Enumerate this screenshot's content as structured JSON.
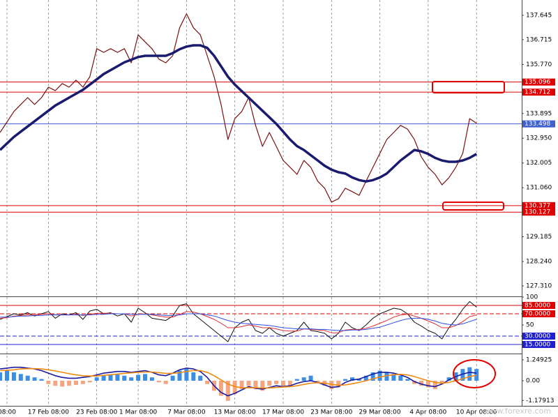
{
  "chart_data": [
    {
      "type": "line",
      "ylim": [
        126.91,
        138.23
      ],
      "yticks": [
        137.645,
        136.715,
        {
          "value": 135.77,
          "label": "135.770"
        },
        133.895,
        {
          "value": 132.95,
          "label": "132.950"
        },
        132.005,
        {
          "value": 131.06,
          "label": "131.060"
        },
        129.185,
        {
          "value": 128.24,
          "label": "128.240"
        },
        {
          "value": 127.31,
          "label": "127.310"
        }
      ],
      "levels": [
        {
          "value": 135.096,
          "color": "#e00000"
        },
        {
          "value": 134.712,
          "color": "#e00000"
        },
        {
          "value": 133.498,
          "color": "#4060d0"
        },
        {
          "value": 130.377,
          "color": "#e00000"
        },
        {
          "value": 130.127,
          "color": "#e00000"
        }
      ],
      "series": [
        {
          "color": "#7a1010",
          "values": [
            133.17,
            133.57,
            133.97,
            134.24,
            134.5,
            134.24,
            134.5,
            134.9,
            134.77,
            135.04,
            134.9,
            135.17,
            134.9,
            135.3,
            136.37,
            136.23,
            136.37,
            136.23,
            136.37,
            135.83,
            136.9,
            136.63,
            136.37,
            135.97,
            135.83,
            136.1,
            137.17,
            137.7,
            137.17,
            136.9,
            136.1,
            135.3,
            134.24,
            132.9,
            133.7,
            133.97,
            134.5,
            133.44,
            132.64,
            133.17,
            132.64,
            132.1,
            131.84,
            131.57,
            132.1,
            131.84,
            131.31,
            131.04,
            130.51,
            130.64,
            131.04,
            130.91,
            130.77,
            131.31,
            131.84,
            132.37,
            132.9,
            133.17,
            133.44,
            133.3,
            132.9,
            132.24,
            131.84,
            131.57,
            131.17,
            131.44,
            131.84,
            132.37,
            133.7,
            133.52
          ]
        },
        {
          "color": "#1a1a6e",
          "values": [
            132.5,
            132.75,
            133.0,
            133.2,
            133.4,
            133.6,
            133.8,
            134.0,
            134.2,
            134.35,
            134.5,
            134.65,
            134.8,
            135.0,
            135.2,
            135.4,
            135.55,
            135.7,
            135.85,
            135.95,
            136.05,
            136.1,
            136.1,
            136.1,
            136.1,
            136.2,
            136.35,
            136.45,
            136.5,
            136.5,
            136.4,
            136.1,
            135.7,
            135.3,
            135.0,
            134.75,
            134.5,
            134.25,
            134.0,
            133.75,
            133.5,
            133.2,
            132.9,
            132.65,
            132.5,
            132.3,
            132.1,
            131.9,
            131.75,
            131.65,
            131.6,
            131.45,
            131.35,
            131.3,
            131.35,
            131.45,
            131.6,
            131.85,
            132.1,
            132.3,
            132.5,
            132.45,
            132.35,
            132.2,
            132.1,
            132.05,
            132.05,
            132.1,
            132.2,
            132.35
          ]
        }
      ]
    },
    {
      "type": "line",
      "ylim": [
        0,
        100
      ],
      "yticks": [
        100,
        50
      ],
      "levels": [
        {
          "value": 85,
          "label": "85.0000",
          "color": "#e00000",
          "style": "solid"
        },
        {
          "value": 70,
          "label": "70.0000",
          "color": "#e00000",
          "style": "dashed"
        },
        {
          "value": 30,
          "label": "30.0000",
          "color": "#2020d0",
          "style": "dashed"
        },
        {
          "value": 15,
          "label": "15.0000",
          "color": "#2020d0",
          "style": "solid"
        }
      ],
      "series": [
        {
          "color": "#111111",
          "values": [
            60,
            65,
            70,
            68,
            72,
            66,
            70,
            74,
            62,
            70,
            68,
            72,
            60,
            75,
            78,
            70,
            72,
            66,
            70,
            55,
            80,
            72,
            62,
            60,
            58,
            66,
            85,
            88,
            70,
            60,
            50,
            40,
            30,
            20,
            45,
            55,
            60,
            40,
            35,
            45,
            35,
            30,
            35,
            40,
            55,
            40,
            38,
            35,
            25,
            35,
            55,
            45,
            40,
            50,
            62,
            70,
            75,
            80,
            78,
            70,
            55,
            48,
            40,
            35,
            25,
            45,
            60,
            78,
            92,
            82
          ]
        },
        {
          "color": "#e03030",
          "values": [
            62,
            63,
            66,
            67,
            68,
            68,
            69,
            70,
            68,
            68,
            68,
            69,
            67,
            69,
            71,
            71,
            71,
            70,
            70,
            66,
            69,
            70,
            68,
            66,
            64,
            64,
            69,
            74,
            73,
            70,
            65,
            60,
            53,
            45,
            45,
            47,
            50,
            48,
            45,
            45,
            43,
            40,
            39,
            39,
            43,
            42,
            41,
            40,
            36,
            36,
            41,
            42,
            42,
            44,
            48,
            53,
            58,
            64,
            68,
            69,
            66,
            62,
            57,
            52,
            45,
            45,
            49,
            56,
            65,
            68
          ]
        },
        {
          "color": "#3050e0",
          "values": [
            64,
            64,
            65,
            66,
            66,
            67,
            67,
            68,
            68,
            68,
            68,
            68,
            68,
            68,
            69,
            69,
            70,
            70,
            70,
            69,
            69,
            69,
            69,
            68,
            67,
            67,
            68,
            70,
            70,
            70,
            68,
            66,
            62,
            58,
            55,
            53,
            52,
            51,
            50,
            49,
            47,
            45,
            44,
            43,
            43,
            43,
            42,
            42,
            41,
            40,
            40,
            41,
            41,
            42,
            44,
            46,
            50,
            54,
            58,
            61,
            62,
            62,
            60,
            57,
            53,
            51,
            50,
            52,
            56,
            60
          ]
        }
      ]
    },
    {
      "type": "macd",
      "ylim": [
        -1.5,
        1.58
      ],
      "yticks": [
        1.24925,
        {
          "value": 0,
          "label": "0.00"
        },
        -1.17913
      ],
      "categories": [
        null,
        "08:00",
        null,
        null,
        null,
        null,
        null,
        "17 Feb 08:00",
        null,
        null,
        null,
        null,
        null,
        null,
        "23 Feb 08:00",
        null,
        null,
        null,
        null,
        null,
        "1 Mar 08:00",
        null,
        null,
        null,
        null,
        null,
        null,
        "7 Mar 08:00",
        null,
        null,
        null,
        null,
        null,
        null,
        "13 Mar 08:00",
        null,
        null,
        null,
        null,
        null,
        null,
        "17 Mar 08:00",
        null,
        null,
        null,
        null,
        null,
        null,
        "23 Mar 08:00",
        null,
        null,
        null,
        null,
        null,
        null,
        "29 Mar 08:00",
        null,
        null,
        null,
        null,
        null,
        null,
        "4 Apr 08:00",
        null,
        null,
        null,
        null,
        null,
        null,
        "10 Apr 08:00"
      ],
      "up_color": "#3a8ee6",
      "down_color": "#f4a582",
      "histogram": [
        0.5,
        0.6,
        0.5,
        0.4,
        0.3,
        0.2,
        0.1,
        -0.2,
        -0.3,
        -0.35,
        -0.3,
        -0.25,
        -0.2,
        -0.1,
        0.2,
        0.3,
        0.35,
        0.4,
        0.3,
        0.2,
        0.35,
        0.4,
        0.2,
        -0.1,
        -0.2,
        0.3,
        0.6,
        0.7,
        0.5,
        0.3,
        -0.2,
        -0.6,
        -0.9,
        -1.2,
        -0.8,
        -0.5,
        -0.3,
        -0.5,
        -0.6,
        -0.3,
        -0.2,
        -0.4,
        -0.3,
        0.1,
        0.2,
        0.3,
        -0.1,
        -0.3,
        -0.5,
        -0.4,
        0.1,
        0.2,
        0.1,
        0.3,
        0.5,
        0.6,
        0.5,
        0.4,
        0.3,
        0.1,
        -0.2,
        -0.3,
        -0.4,
        -0.5,
        -0.2,
        0.2,
        0.5,
        0.7,
        0.8,
        0.7
      ],
      "series": [
        {
          "color": "#1a1aa0",
          "values": [
            0.7,
            0.75,
            0.8,
            0.8,
            0.75,
            0.7,
            0.6,
            0.45,
            0.3,
            0.2,
            0.15,
            0.15,
            0.2,
            0.25,
            0.35,
            0.45,
            0.5,
            0.55,
            0.55,
            0.5,
            0.55,
            0.6,
            0.5,
            0.35,
            0.3,
            0.45,
            0.65,
            0.75,
            0.7,
            0.55,
            0.2,
            -0.3,
            -0.7,
            -0.9,
            -0.75,
            -0.55,
            -0.35,
            -0.45,
            -0.5,
            -0.4,
            -0.3,
            -0.35,
            -0.3,
            -0.15,
            -0.05,
            0.0,
            -0.1,
            -0.25,
            -0.4,
            -0.35,
            -0.1,
            0.05,
            0.1,
            0.25,
            0.4,
            0.5,
            0.5,
            0.45,
            0.35,
            0.2,
            -0.05,
            -0.2,
            -0.3,
            -0.35,
            -0.2,
            0.05,
            0.25,
            0.4,
            0.5,
            0.45
          ]
        },
        {
          "color": "#f08a10",
          "values": [
            0.6,
            0.62,
            0.65,
            0.7,
            0.72,
            0.72,
            0.7,
            0.65,
            0.58,
            0.5,
            0.42,
            0.35,
            0.3,
            0.28,
            0.28,
            0.32,
            0.36,
            0.4,
            0.44,
            0.47,
            0.5,
            0.52,
            0.52,
            0.48,
            0.44,
            0.44,
            0.48,
            0.55,
            0.6,
            0.6,
            0.5,
            0.3,
            0.05,
            -0.2,
            -0.35,
            -0.42,
            -0.42,
            -0.42,
            -0.44,
            -0.43,
            -0.4,
            -0.38,
            -0.35,
            -0.3,
            -0.22,
            -0.15,
            -0.12,
            -0.15,
            -0.22,
            -0.27,
            -0.25,
            -0.18,
            -0.1,
            0.0,
            0.12,
            0.22,
            0.3,
            0.36,
            0.38,
            0.35,
            0.25,
            0.12,
            0.0,
            -0.1,
            -0.15,
            -0.1,
            0.0,
            0.12,
            0.25,
            0.32
          ]
        }
      ]
    }
  ],
  "watermark": "www.forexre.com"
}
